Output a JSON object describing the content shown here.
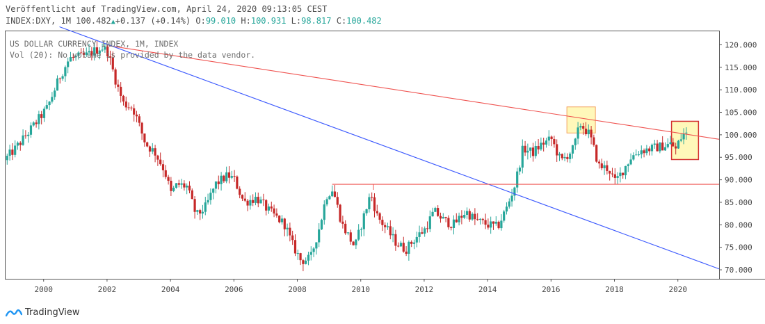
{
  "header": {
    "published": "Veröffentlicht auf TradingView.com, April 24, 2020 09:13:05 CEST",
    "symbol": "INDEX:DXY, 1M 100.482",
    "change": "+0.137 (+0.14%)",
    "open_label": "O:",
    "open": "99.010",
    "high_label": "H:",
    "high": "100.931",
    "low_label": "L:",
    "low": "98.817",
    "close_label": "C:",
    "close": "100.482"
  },
  "legend": {
    "title": "US DOLLAR CURRENCY INDEX, 1M, INDEX",
    "volume": "Vol (20): No volume is provided by the data vendor."
  },
  "footer": {
    "brand": "TradingView"
  },
  "colors": {
    "up": "#26a69a",
    "down": "#c62828",
    "redline": "#ef5350",
    "blueline": "#3d5afe",
    "highlight": "#fff59d"
  },
  "chart_data": {
    "type": "candlestick",
    "x_ticks": [
      "2000",
      "2002",
      "2004",
      "2006",
      "2008",
      "2010",
      "2012",
      "2014",
      "2016",
      "2018",
      "2020"
    ],
    "y_ticks": [
      "120.000",
      "115.000",
      "110.000",
      "105.000",
      "100.000",
      "95.000",
      "90.000",
      "85.000",
      "80.000",
      "75.000",
      "70.000"
    ],
    "ylim": [
      68,
      123
    ],
    "xlim": [
      1998.8,
      2021.3
    ],
    "last_price": 100.482,
    "anchors": [
      [
        1998.8,
        94.0
      ],
      [
        1999.2,
        97.0
      ],
      [
        1999.6,
        100.5
      ],
      [
        2000.2,
        106.0
      ],
      [
        2000.6,
        113.0
      ],
      [
        2000.9,
        117.0
      ],
      [
        2001.4,
        117.5
      ],
      [
        2001.9,
        119.5
      ],
      [
        2002.1,
        118.5
      ],
      [
        2002.4,
        111.0
      ],
      [
        2002.6,
        107.0
      ],
      [
        2002.9,
        106.0
      ],
      [
        2003.3,
        98.0
      ],
      [
        2003.6,
        96.0
      ],
      [
        2003.9,
        92.0
      ],
      [
        2004.1,
        87.0
      ],
      [
        2004.3,
        89.0
      ],
      [
        2004.6,
        88.5
      ],
      [
        2004.9,
        82.0
      ],
      [
        2005.2,
        84.0
      ],
      [
        2005.5,
        89.0
      ],
      [
        2005.9,
        91.0
      ],
      [
        2006.1,
        90.0
      ],
      [
        2006.4,
        85.0
      ],
      [
        2006.8,
        86.0
      ],
      [
        2007.2,
        83.0
      ],
      [
        2007.7,
        80.0
      ],
      [
        2007.9,
        76.0
      ],
      [
        2008.2,
        72.0
      ],
      [
        2008.5,
        72.5
      ],
      [
        2008.8,
        80.0
      ],
      [
        2009.0,
        86.5
      ],
      [
        2009.2,
        88.0
      ],
      [
        2009.5,
        80.0
      ],
      [
        2009.9,
        75.0
      ],
      [
        2010.1,
        80.0
      ],
      [
        2010.4,
        87.0
      ],
      [
        2010.6,
        82.0
      ],
      [
        2010.9,
        79.0
      ],
      [
        2011.2,
        76.0
      ],
      [
        2011.5,
        74.5
      ],
      [
        2011.8,
        77.0
      ],
      [
        2012.1,
        79.0
      ],
      [
        2012.4,
        83.0
      ],
      [
        2012.7,
        81.0
      ],
      [
        2013.0,
        80.0
      ],
      [
        2013.4,
        83.0
      ],
      [
        2013.7,
        81.0
      ],
      [
        2014.1,
        80.0
      ],
      [
        2014.4,
        79.5
      ],
      [
        2014.7,
        84.0
      ],
      [
        2014.95,
        89.0
      ],
      [
        2015.2,
        97.0
      ],
      [
        2015.5,
        96.0
      ],
      [
        2015.8,
        98.0
      ],
      [
        2016.1,
        99.0
      ],
      [
        2016.4,
        94.0
      ],
      [
        2016.8,
        97.0
      ],
      [
        2017.0,
        102.5
      ],
      [
        2017.3,
        100.0
      ],
      [
        2017.6,
        93.0
      ],
      [
        2017.9,
        92.5
      ],
      [
        2018.1,
        89.5
      ],
      [
        2018.3,
        91.5
      ],
      [
        2018.6,
        95.0
      ],
      [
        2018.9,
        96.5
      ],
      [
        2019.3,
        97.0
      ],
      [
        2019.6,
        97.5
      ],
      [
        2019.9,
        98.0
      ],
      [
        2020.0,
        96.5
      ],
      [
        2020.15,
        99.0
      ],
      [
        2020.3,
        100.5
      ]
    ],
    "annotations": [
      {
        "type": "line",
        "color": "red",
        "from": [
          2002.05,
          119.8
        ],
        "to": [
          2021.3,
          99.0
        ]
      },
      {
        "type": "line",
        "color": "blue",
        "from": [
          2000.5,
          124.0
        ],
        "to": [
          2021.3,
          70.2
        ]
      },
      {
        "type": "hline",
        "color": "red",
        "y": 89.0,
        "from_x": 2009.1,
        "to_x": 2021.3
      },
      {
        "type": "box",
        "style": "yellow",
        "x1": 2016.5,
        "x2": 2017.4,
        "y1": 100.4,
        "y2": 106.2
      },
      {
        "type": "box",
        "style": "yellow-red-border",
        "x1": 2019.8,
        "x2": 2020.65,
        "y1": 94.5,
        "y2": 103.0
      }
    ]
  }
}
